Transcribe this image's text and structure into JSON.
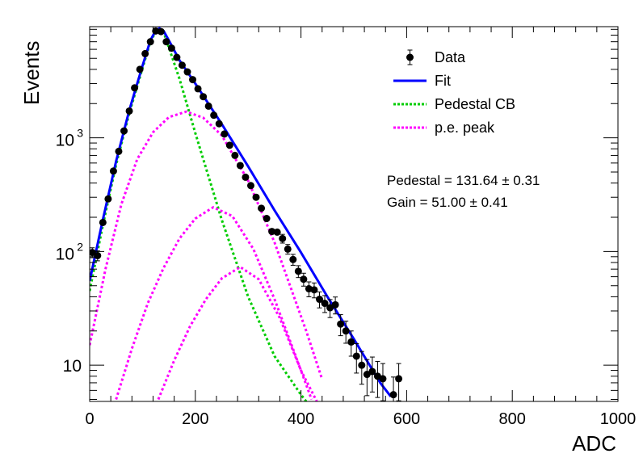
{
  "chart_data": {
    "type": "scatter",
    "xlabel": "ADC",
    "ylabel": "Events",
    "xlim": [
      0,
      1000
    ],
    "ylim": [
      4.8,
      9500
    ],
    "y_scale": "log",
    "x_ticks": [
      {
        "value": 0,
        "label": "0"
      },
      {
        "value": 200,
        "label": "200"
      },
      {
        "value": 400,
        "label": "400"
      },
      {
        "value": 600,
        "label": "600"
      },
      {
        "value": 800,
        "label": "800"
      },
      {
        "value": 1000,
        "label": "1000"
      }
    ],
    "y_ticks": [
      {
        "value": 10,
        "base": "10",
        "exp": ""
      },
      {
        "value": 100,
        "base": "10",
        "exp": "2"
      },
      {
        "value": 1000,
        "base": "10",
        "exp": "3"
      }
    ],
    "legend_position": "top-right",
    "legend": [
      {
        "label": "Data",
        "style": "marker",
        "color": "#000000"
      },
      {
        "label": "Fit",
        "style": "solid",
        "color": "#0000ff"
      },
      {
        "label": "Pedestal CB",
        "style": "dotted",
        "color": "#00cc00"
      },
      {
        "label": "p.e. peak",
        "style": "dotted",
        "color": "#ff00ff"
      }
    ],
    "annotations": [
      "Pedestal = 131.64 ± 0.31",
      "Gain = 51.00 ± 0.41"
    ],
    "data_points": {
      "x": [
        5,
        15,
        25,
        35,
        45,
        55,
        65,
        75,
        85,
        95,
        105,
        115,
        125,
        135,
        145,
        155,
        165,
        175,
        185,
        195,
        205,
        215,
        225,
        235,
        245,
        255,
        265,
        275,
        285,
        295,
        305,
        315,
        325,
        335,
        345,
        355,
        365,
        375,
        385,
        395,
        405,
        415,
        425,
        435,
        445,
        455,
        465,
        475,
        485,
        495,
        505,
        515,
        525,
        535,
        545,
        555,
        575,
        585
      ],
      "y": [
        98,
        92,
        180,
        290,
        510,
        760,
        1150,
        1720,
        2750,
        4000,
        5500,
        7000,
        8700,
        8600,
        7000,
        6150,
        5100,
        4350,
        3800,
        3250,
        2700,
        2300,
        1900,
        1580,
        1330,
        1080,
        860,
        700,
        570,
        450,
        380,
        300,
        240,
        195,
        150,
        148,
        130,
        105,
        85,
        67,
        57,
        47,
        46,
        38,
        35,
        32,
        34,
        23,
        20,
        16,
        12,
        10,
        8.3,
        8.8,
        8.0,
        7.6,
        5.5,
        7.6
      ],
      "yerr_rel": [
        0.1,
        0.1,
        0.075,
        0.06,
        0.045,
        0.036,
        0.03,
        0.024,
        0.019,
        0.016,
        0.013,
        0.012,
        0.011,
        0.011,
        0.012,
        0.013,
        0.014,
        0.015,
        0.016,
        0.018,
        0.019,
        0.021,
        0.023,
        0.025,
        0.027,
        0.03,
        0.034,
        0.038,
        0.042,
        0.047,
        0.051,
        0.058,
        0.065,
        0.072,
        0.082,
        0.082,
        0.088,
        0.098,
        0.11,
        0.12,
        0.13,
        0.15,
        0.15,
        0.16,
        0.17,
        0.18,
        0.17,
        0.21,
        0.22,
        0.25,
        0.29,
        0.32,
        0.35,
        0.34,
        0.35,
        0.36,
        0.43,
        0.36
      ]
    },
    "series": [
      {
        "name": "Fit",
        "x": [
          0,
          25,
          50,
          75,
          100,
          115,
          125,
          132,
          140,
          155,
          170,
          200,
          250,
          300,
          350,
          400,
          450,
          500,
          550,
          570
        ],
        "y": [
          55,
          190,
          620,
          1750,
          4300,
          7200,
          8800,
          9200,
          8700,
          6500,
          4800,
          3000,
          1320,
          560,
          230,
          98,
          40,
          17,
          7.0,
          5.3
        ]
      },
      {
        "name": "Pedestal CB",
        "x": [
          0,
          25,
          50,
          75,
          100,
          115,
          125,
          132,
          140,
          155,
          170,
          200,
          250,
          300,
          350,
          400,
          410
        ],
        "y": [
          45,
          170,
          580,
          1650,
          4100,
          7000,
          8600,
          9050,
          8500,
          5300,
          3300,
          1100,
          190,
          40,
          12,
          5.5,
          4.8
        ]
      },
      {
        "name": "p.e. peak",
        "x": [
          0,
          30,
          60,
          90,
          120,
          150,
          183,
          215,
          250,
          300,
          350,
          410,
          440
        ],
        "y": [
          15,
          70,
          260,
          650,
          1120,
          1520,
          1700,
          1500,
          1050,
          420,
          120,
          20,
          7.5
        ]
      },
      {
        "name": "p.e. peak",
        "x": [
          50,
          80,
          110,
          140,
          170,
          200,
          234,
          270,
          310,
          350,
          390,
          420
        ],
        "y": [
          5,
          14,
          35,
          72,
          130,
          195,
          245,
          205,
          105,
          38,
          12,
          5
        ]
      },
      {
        "name": "p.e. peak",
        "x": [
          130,
          160,
          190,
          220,
          250,
          285,
          320,
          360,
          400,
          430
        ],
        "y": [
          5,
          11,
          22,
          38,
          58,
          73,
          57,
          26,
          9,
          4.8
        ]
      }
    ]
  }
}
